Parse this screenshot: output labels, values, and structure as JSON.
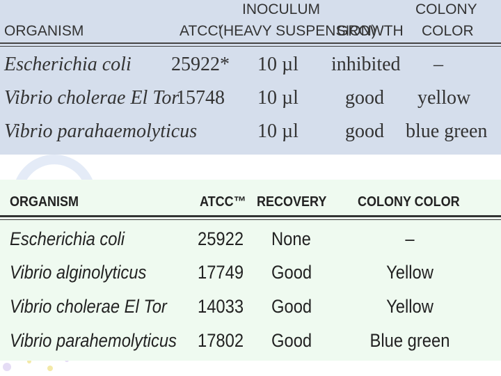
{
  "table1": {
    "headers": {
      "organism": "ORGANISM",
      "atcc": "ATCC'",
      "inoculum_line1": "INOCULUM",
      "inoculum_line2": "(HEAVY SUSPENSION)",
      "growth": "GROWTH",
      "colony_line1": "COLONY",
      "colony_line2": "COLOR"
    },
    "rows": [
      {
        "organism": "Escherichia coli",
        "atcc": "25922*",
        "inoculum": "10 µl",
        "growth": "inhibited",
        "color": "–"
      },
      {
        "organism": "Vibrio cholerae El Tor",
        "atcc": "15748",
        "inoculum": "10 µl",
        "growth": "good",
        "color": "yellow"
      },
      {
        "organism": "Vibrio parahaemolyticus",
        "atcc": "",
        "inoculum": "10 µl",
        "growth": "good",
        "color": "blue green"
      }
    ]
  },
  "table2": {
    "headers": {
      "organism": "ORGANISM",
      "atcc": "ATCC™",
      "recovery": "RECOVERY",
      "colony_color": "COLONY  COLOR"
    },
    "rows": [
      {
        "organism": "Escherichia coli",
        "atcc": "25922",
        "recovery": "None",
        "color": "–"
      },
      {
        "organism": "Vibrio alginolyticus",
        "atcc": "17749",
        "recovery": "Good",
        "color": "Yellow"
      },
      {
        "organism": "Vibrio cholerae El Tor",
        "atcc": "14033",
        "recovery": "Good",
        "color": "Yellow"
      },
      {
        "organism": "Vibrio parahemolyticus",
        "atcc": "17802",
        "recovery": "Good",
        "color": "Blue green"
      }
    ]
  },
  "colors": {
    "panel1_bg": "#d5deec",
    "panel2_bg": "#effaf0"
  }
}
